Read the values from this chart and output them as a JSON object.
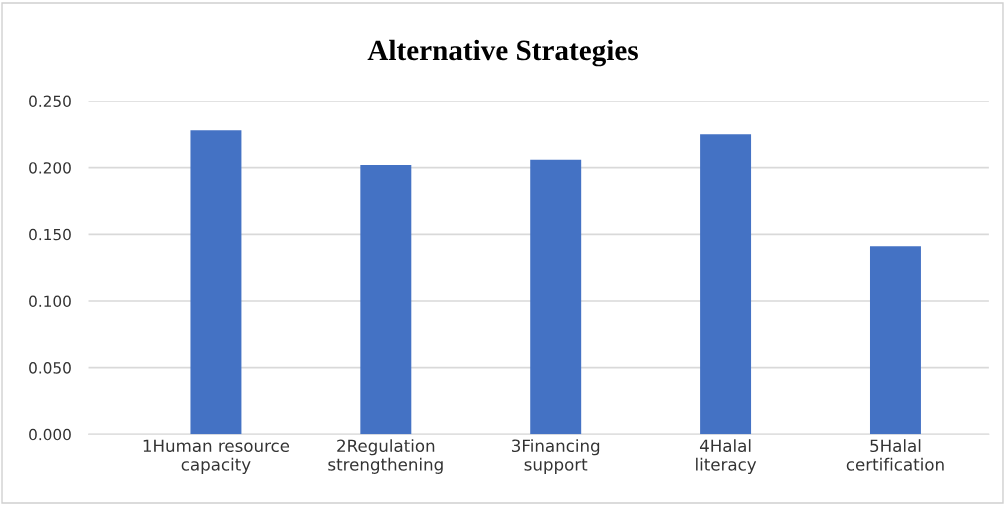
{
  "chart_data": {
    "type": "bar",
    "title": "Alternative Strategies",
    "categories": [
      "1Human resource\ncapacity",
      "2Regulation\nstrengthening",
      "3Financing\nsupport",
      "4Halal\nliteracy",
      "5Halal\ncertification"
    ],
    "values": [
      0.228,
      0.202,
      0.206,
      0.225,
      0.141
    ],
    "color": "#4472c4",
    "ylim": [
      0,
      0.25
    ],
    "yticks": [
      {
        "value": 0,
        "label": "0.000"
      },
      {
        "value": 0.05,
        "label": "0.050"
      },
      {
        "value": 0.1,
        "label": "0.100"
      },
      {
        "value": 0.15,
        "label": "0.150"
      },
      {
        "value": 0.2,
        "label": "0.200"
      },
      {
        "value": 0.25,
        "label": "0.250"
      }
    ],
    "grid": "y"
  }
}
